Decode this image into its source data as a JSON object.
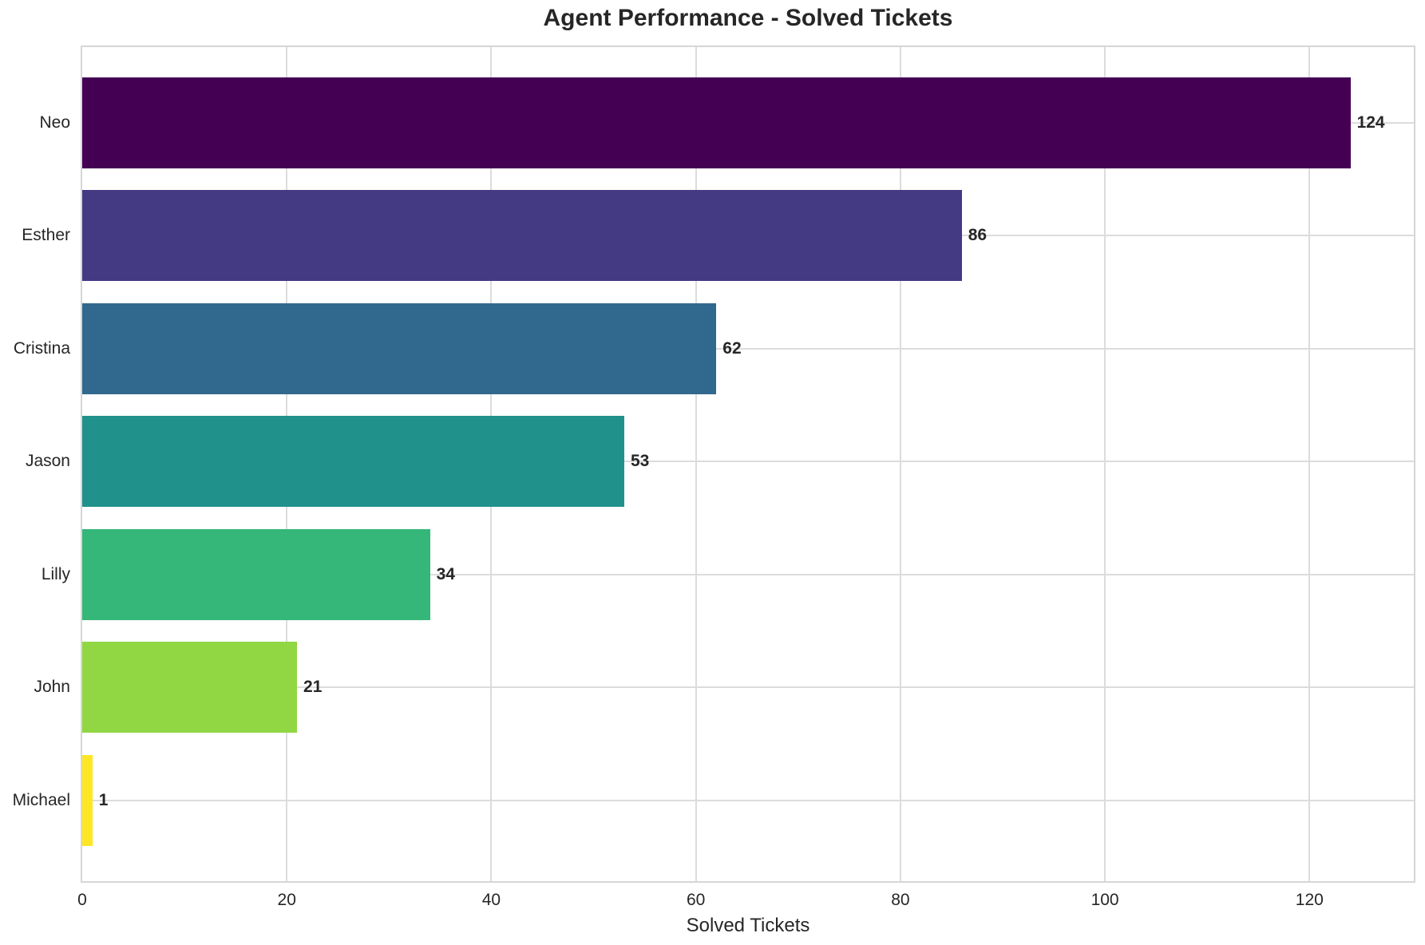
{
  "chart_data": {
    "type": "bar",
    "orientation": "horizontal",
    "title": "Agent Performance - Solved Tickets",
    "xlabel": "Solved Tickets",
    "ylabel": "",
    "categories": [
      "Neo",
      "Esther",
      "Cristina",
      "Jason",
      "Lilly",
      "John",
      "Michael"
    ],
    "values": [
      124,
      86,
      62,
      53,
      34,
      21,
      1
    ],
    "value_labels": [
      "124",
      "86",
      "62",
      "53",
      "34",
      "21",
      "1"
    ],
    "bar_colors": [
      "#440154",
      "#443983",
      "#31688e",
      "#21918c",
      "#35b779",
      "#90d743",
      "#fde725"
    ],
    "x_ticks": [
      0,
      20,
      40,
      60,
      80,
      100,
      120
    ],
    "xlim": [
      0,
      130.2
    ],
    "grid": true,
    "legend_position": "none",
    "background_color": "#ffffff",
    "grid_color": "#dcdcdc",
    "spine_color": "#d6d6d6",
    "text_color": "#262626"
  }
}
